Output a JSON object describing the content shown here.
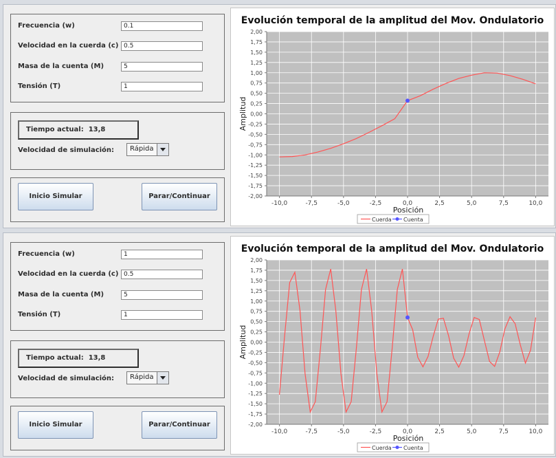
{
  "labels": {
    "frecuencia": "Frecuencia (w)",
    "velocidad_cuerda": "Velocidad en la cuerda (c)",
    "masa": "Masa de la cuenta (M)",
    "tension": "Tensión (T)",
    "tiempo_actual": "Tiempo actual:",
    "velocidad_simulacion": "Velocidad de simulación:"
  },
  "buttons": {
    "inicio": "Inicio Simular",
    "parar": "Parar/Continuar"
  },
  "simulations": [
    {
      "inputs": {
        "frecuencia": "0.1",
        "velocidad_cuerda": "0.5",
        "masa": "5",
        "tension": "1"
      },
      "tiempo": "13,8",
      "velocidad_sim": "Rápida"
    },
    {
      "inputs": {
        "frecuencia": "1",
        "velocidad_cuerda": "0.5",
        "masa": "5",
        "tension": "1"
      },
      "tiempo": "13,8",
      "velocidad_sim": "Rápida"
    }
  ],
  "colors": {
    "plot_bg": "#c0c0c0",
    "gridline": "#ffffff",
    "cuerda": "#ff5555",
    "cuenta": "#5555ff",
    "button_border": "#7d93b4"
  },
  "chart_data": [
    {
      "type": "line",
      "title": "Evolución temporal de la amplitud del Mov. Ondulatorio",
      "xlabel": "Posición",
      "ylabel": "Amplitud",
      "xlim": [
        -11,
        11
      ],
      "ylim": [
        -2.0,
        2.0
      ],
      "x_ticks": [
        "-10,0",
        "-7,5",
        "-5,0",
        "-2,5",
        "0,0",
        "2,5",
        "5,0",
        "7,5",
        "10,0"
      ],
      "y_ticks": [
        "2,00",
        "1,75",
        "1,50",
        "1,25",
        "1,00",
        "0,75",
        "0,50",
        "0,25",
        "0,00",
        "-0,25",
        "-0,50",
        "-0,75",
        "-1,00",
        "-1,25",
        "-1,50",
        "-1,75",
        "-2,00"
      ],
      "series": [
        {
          "name": "Cuerda",
          "x": [
            -10,
            -9,
            -8,
            -7,
            -6,
            -5,
            -4,
            -3,
            -2,
            -1,
            0,
            1,
            2,
            3,
            4,
            5,
            6,
            7,
            8,
            9,
            10
          ],
          "y": [
            -1.05,
            -1.04,
            -1.0,
            -0.93,
            -0.84,
            -0.73,
            -0.6,
            -0.45,
            -0.29,
            -0.12,
            0.32,
            0.44,
            0.6,
            0.74,
            0.86,
            0.94,
            1.0,
            0.99,
            0.93,
            0.84,
            0.73
          ]
        },
        {
          "name": "Cuenta",
          "x": [
            0.0
          ],
          "y": [
            0.32
          ]
        }
      ],
      "legend": "bottom",
      "grid": true
    },
    {
      "type": "line",
      "title": "Evolución temporal de la amplitud del Mov. Ondulatorio",
      "xlabel": "Posición",
      "ylabel": "Amplitud",
      "xlim": [
        -11,
        11
      ],
      "ylim": [
        -2.0,
        2.0
      ],
      "x_ticks": [
        "-10,0",
        "-7,5",
        "-5,0",
        "-2,5",
        "0,0",
        "2,5",
        "5,0",
        "7,5",
        "10,0"
      ],
      "y_ticks": [
        "2,00",
        "1,75",
        "1,50",
        "1,25",
        "1,00",
        "0,75",
        "0,50",
        "0,25",
        "0,00",
        "-0,25",
        "-0,50",
        "-0,75",
        "-1,00",
        "-1,25",
        "-1,50",
        "-1,75",
        "-2,00"
      ],
      "series": [
        {
          "name": "Cuerda",
          "x": [
            -10,
            -9.6,
            -9.2,
            -8.8,
            -8.4,
            -8.0,
            -7.6,
            -7.2,
            -6.8,
            -6.4,
            -6.0,
            -5.6,
            -5.2,
            -4.8,
            -4.4,
            -4.0,
            -3.6,
            -3.2,
            -2.8,
            -2.4,
            -2.0,
            -1.6,
            -1.2,
            -0.8,
            -0.4,
            0.0,
            0.4,
            0.8,
            1.2,
            1.6,
            2.0,
            2.4,
            2.8,
            3.2,
            3.6,
            4.0,
            4.4,
            4.8,
            5.2,
            5.6,
            6.0,
            6.4,
            6.8,
            7.2,
            7.6,
            8.0,
            8.4,
            8.8,
            9.2,
            9.6,
            10.0
          ],
          "y": [
            -1.28,
            0.15,
            1.45,
            1.7,
            0.77,
            -0.77,
            -1.7,
            -1.45,
            -0.15,
            1.28,
            1.78,
            0.77,
            -0.77,
            -1.7,
            -1.45,
            -0.15,
            1.28,
            1.78,
            0.77,
            -0.77,
            -1.7,
            -1.45,
            -0.15,
            1.28,
            1.78,
            0.6,
            0.3,
            -0.37,
            -0.6,
            -0.35,
            0.14,
            0.56,
            0.58,
            0.16,
            -0.39,
            -0.61,
            -0.33,
            0.2,
            0.6,
            0.55,
            0.04,
            -0.47,
            -0.59,
            -0.24,
            0.32,
            0.62,
            0.45,
            -0.06,
            -0.51,
            -0.2,
            0.6
          ]
        },
        {
          "name": "Cuenta",
          "x": [
            0.0
          ],
          "y": [
            0.6
          ]
        }
      ],
      "legend": "bottom",
      "grid": true
    }
  ]
}
